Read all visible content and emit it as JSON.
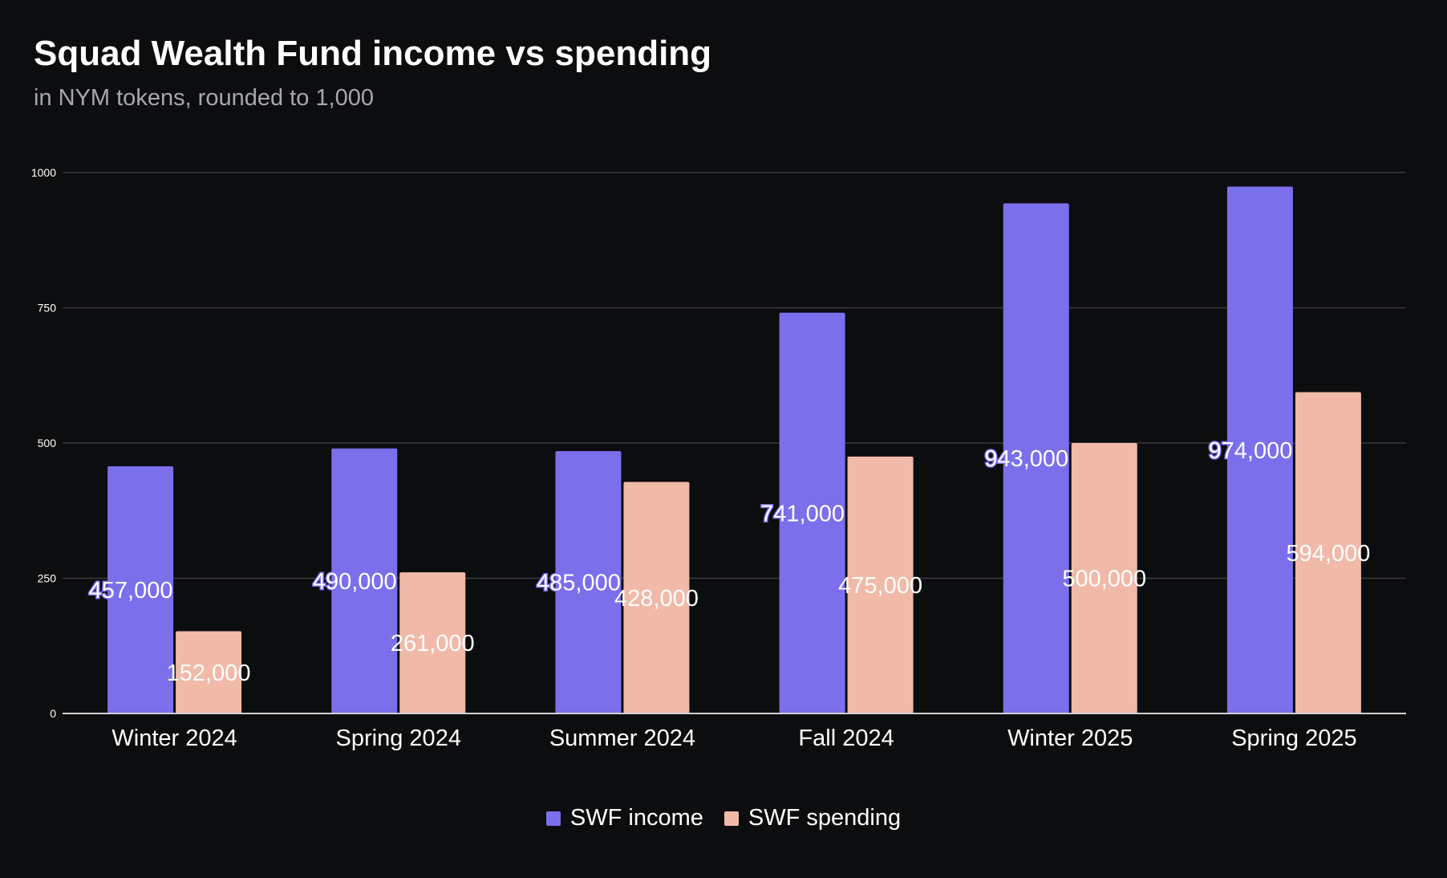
{
  "chart_data": {
    "type": "bar",
    "title": "Squad Wealth Fund income vs spending",
    "subtitle": "in NYM tokens, rounded to 1,000",
    "xlabel": "",
    "ylabel": "",
    "categories": [
      "Winter 2024",
      "Spring 2024",
      "Summer 2024",
      "Fall 2024",
      "Winter 2025",
      "Spring 2025"
    ],
    "series": [
      {
        "name": "SWF income",
        "color": "#7b6fec",
        "values": [
          457,
          490,
          485,
          741,
          943,
          974
        ],
        "labels": [
          "457,000",
          "490,000",
          "485,000",
          "741,000",
          "943,000",
          "974,000"
        ]
      },
      {
        "name": "SWF spending",
        "color": "#f1b9a8",
        "values": [
          152,
          261,
          428,
          475,
          500,
          594
        ],
        "labels": [
          "152,000",
          "261,000",
          "428,000",
          "475,000",
          "500,000",
          "594,000"
        ]
      }
    ],
    "yticks": [
      0,
      250,
      500,
      750,
      1000
    ],
    "ytick_labels": [
      "0",
      "250",
      "500",
      "750",
      "1000"
    ],
    "ylim": [
      0,
      1000
    ],
    "grid": true,
    "legend_position": "bottom-center",
    "background_color": "#0c0d0f",
    "grid_color": "#3a3b3e"
  }
}
